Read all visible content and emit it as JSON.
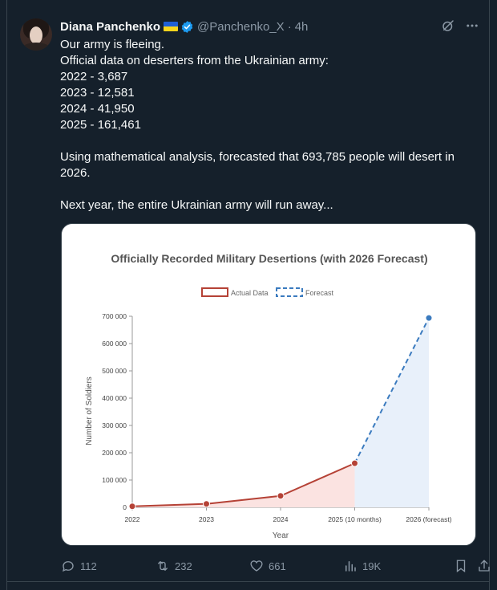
{
  "tweet": {
    "author": {
      "name": "Diana Panchenko",
      "handle": "@Panchenko_X",
      "time": "4h"
    },
    "body": "Our army is fleeing.\nOfficial data on deserters from the Ukrainian army:\n2022 - 3,687\n2023 - 12,581\n2024 - 41,950\n2025 - 161,461\n\nUsing mathematical analysis, forecasted that 693,785 people will desert in 2026.\n\nNext year, the entire Ukrainian army will run away...",
    "actions": {
      "replies": "112",
      "reposts": "232",
      "likes": "661",
      "views": "19K"
    },
    "icons": [
      "flag-ukraine-icon",
      "verified-badge-icon",
      "grok-icon",
      "more-icon",
      "reply-icon",
      "repost-icon",
      "like-icon",
      "views-icon",
      "bookmark-icon",
      "share-icon"
    ],
    "colors": {
      "background": "#15202b",
      "text": "#f7f9f9",
      "muted": "#8b98a5",
      "verified": "#1d9bf0"
    }
  },
  "chart_data": {
    "type": "line",
    "title": "Officially Recorded Military Desertions (with 2026 Forecast)",
    "xlabel": "Year",
    "ylabel": "Number of Soldiers",
    "categories": [
      "2022",
      "2023",
      "2024",
      "2025 (10 months)",
      "2026 (forecast)"
    ],
    "series": [
      {
        "name": "Actual Data",
        "values": [
          3687,
          12581,
          41950,
          161461,
          null
        ],
        "color": "#b54236",
        "fill": "#fbe3e1",
        "style": "solid"
      },
      {
        "name": "Forecast",
        "values": [
          null,
          null,
          null,
          161461,
          693785
        ],
        "color": "#3b7bbf",
        "fill": "#e8f0fa",
        "style": "dashed"
      }
    ],
    "ylim": [
      0,
      700000
    ],
    "yticks": [
      "0",
      "100 000",
      "200 000",
      "300 000",
      "400 000",
      "500 000",
      "600 000",
      "700 000"
    ],
    "legend": "top-center",
    "grid": false
  }
}
